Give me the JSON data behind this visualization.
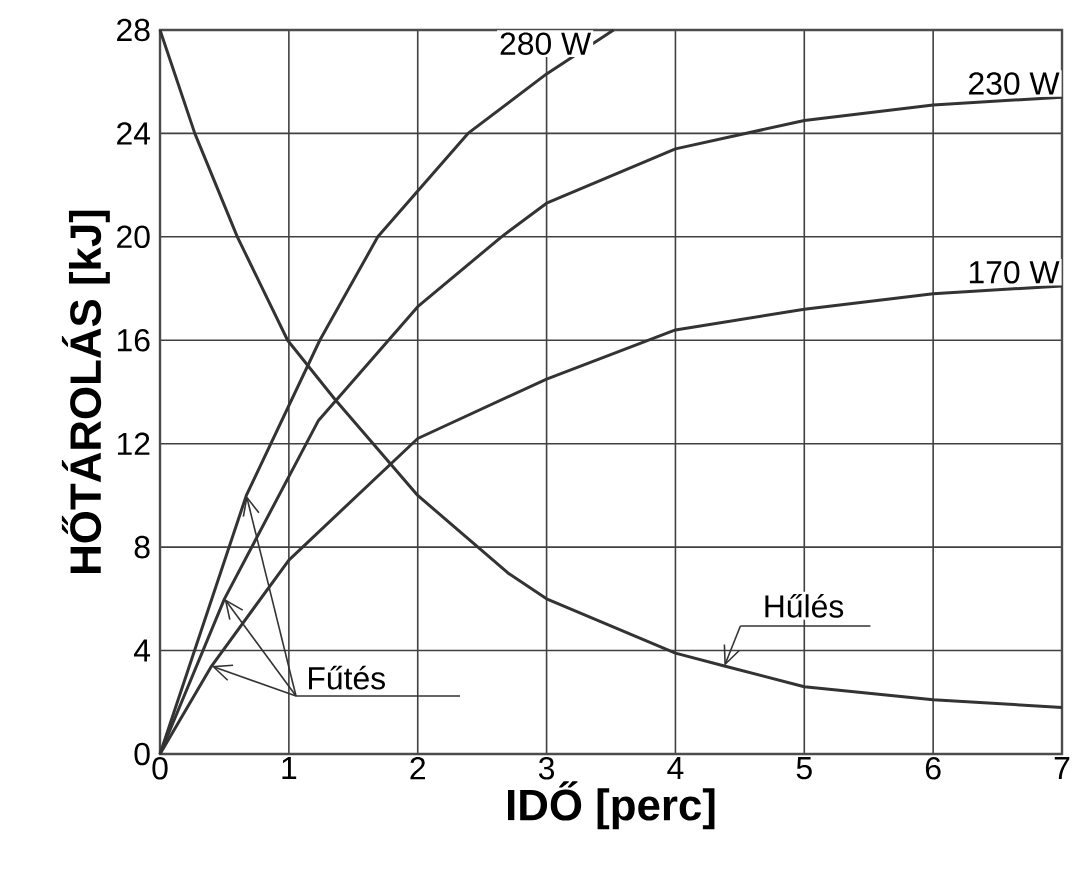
{
  "chart_data": {
    "type": "line",
    "xlabel": "IDŐ [perc]",
    "ylabel": "HŐTÁROLÁS [kJ]",
    "xlim": [
      0,
      7
    ],
    "ylim": [
      0,
      28
    ],
    "xticks": [
      0,
      1,
      2,
      3,
      4,
      5,
      6,
      7
    ],
    "yticks": [
      0,
      4,
      8,
      12,
      16,
      20,
      24,
      28
    ],
    "grid": true,
    "marker": "none",
    "line_style": "solid",
    "series": [
      {
        "name": "280 W",
        "color": "#333333",
        "x": [
          0,
          0.67,
          1.24,
          1.69,
          2.39,
          3,
          3.52
        ],
        "values": [
          0,
          10,
          16,
          20,
          24,
          26.3,
          28
        ]
      },
      {
        "name": "230 W",
        "color": "#333333",
        "x": [
          0,
          0.5,
          1.23,
          2,
          2.65,
          3,
          4,
          5,
          6,
          7
        ],
        "values": [
          0,
          6,
          12.9,
          17.3,
          20,
          21.3,
          23.4,
          24.5,
          25.1,
          25.4
        ]
      },
      {
        "name": "170 W",
        "color": "#333333",
        "x": [
          0,
          0.4,
          1,
          2,
          3,
          4,
          5,
          6,
          7
        ],
        "values": [
          0,
          3.4,
          7.5,
          12.2,
          14.5,
          16.4,
          17.2,
          17.8,
          18.1
        ]
      },
      {
        "color": "#333333",
        "x": [
          0,
          0.27,
          0.6,
          0.99,
          1.36,
          2,
          2.7,
          3,
          4,
          4.38,
          5,
          6,
          7
        ],
        "values": [
          28,
          24,
          20,
          16,
          13.7,
          10,
          7,
          6,
          3.9,
          3.4,
          2.6,
          2.1,
          1.8
        ]
      }
    ],
    "annotations": [
      {
        "text": "Fűtés",
        "x": 0.67,
        "y": 10
      },
      {
        "text": "Hűlés",
        "x": 4.38,
        "y": 3.4
      }
    ]
  }
}
